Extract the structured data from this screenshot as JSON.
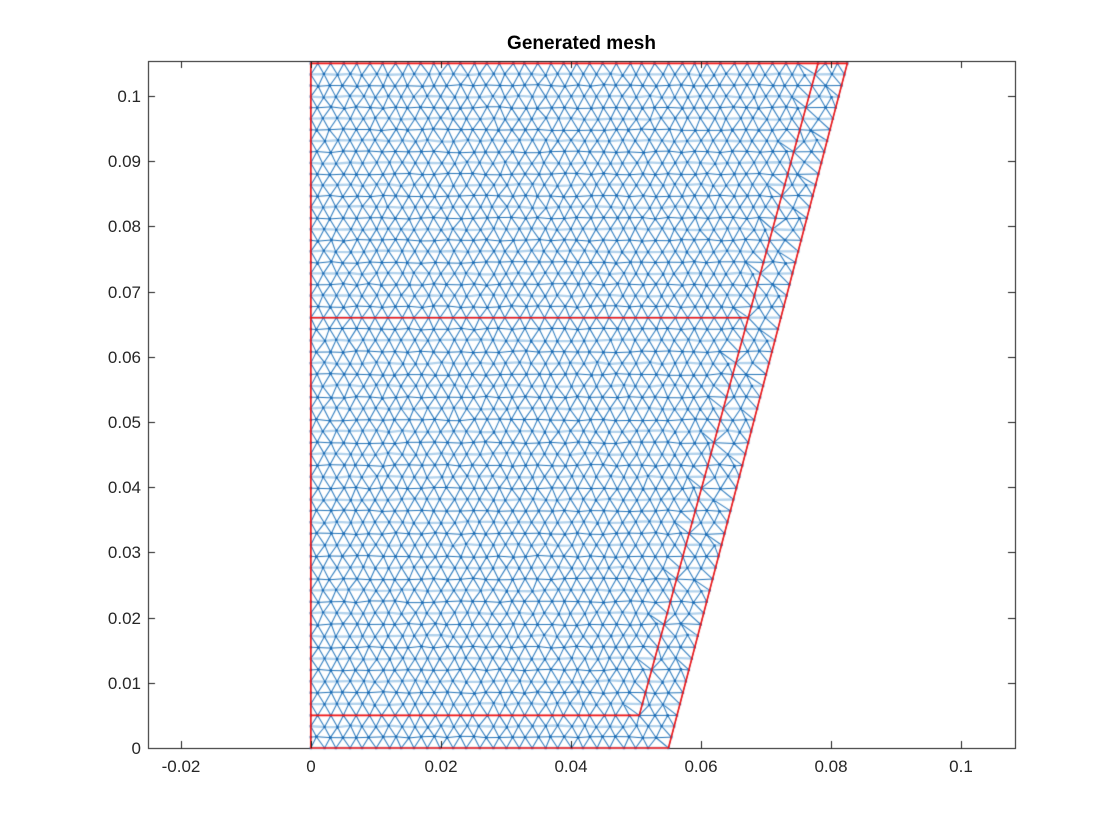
{
  "chart_data": {
    "type": "mesh",
    "title": "Generated mesh",
    "x_tick_labels": [
      "-0.02",
      "0",
      "0.02",
      "0.04",
      "0.06",
      "0.08",
      "0.1"
    ],
    "x_tick_values": [
      -0.02,
      0,
      0.02,
      0.04,
      0.06,
      0.08,
      0.1
    ],
    "y_tick_labels": [
      "0",
      "0.01",
      "0.02",
      "0.03",
      "0.04",
      "0.05",
      "0.06",
      "0.07",
      "0.08",
      "0.09",
      "0.1"
    ],
    "y_tick_values": [
      0,
      0.01,
      0.02,
      0.03,
      0.04,
      0.05,
      0.06,
      0.07,
      0.08,
      0.09,
      0.1
    ],
    "xlim": [
      -0.02504,
      0.10829
    ],
    "ylim": [
      0,
      0.10537
    ],
    "grid": false,
    "legend": null,
    "geometry": {
      "outer_boundary": [
        [
          0,
          0
        ],
        [
          0.055,
          0
        ],
        [
          0.0825,
          0.105
        ],
        [
          0,
          0.105
        ]
      ],
      "internal_edges": [
        [
          [
            0,
            0.005
          ],
          [
            0.0505,
            0.005
          ]
        ],
        [
          [
            0.0505,
            0.005
          ],
          [
            0.078,
            0.105
          ]
        ],
        [
          [
            0,
            0.066
          ],
          [
            0.0673,
            0.066
          ]
        ]
      ],
      "horizontal_levels": [
        0,
        0.005,
        0.066,
        0.105
      ],
      "mesh_spacing": 0.002,
      "mesh_type": "triangular"
    },
    "colors": {
      "boundary": "#f41414",
      "mesh_edge": "#2a7abe",
      "mesh_horizontal_light": "#b2d2ec",
      "mesh_horizontal_dark": "#2273b8",
      "mesh_node": "#1a6ab4",
      "axis": "#1a1a1a",
      "tick_label": "#262626",
      "title": "#000000",
      "background": "#ffffff"
    }
  }
}
